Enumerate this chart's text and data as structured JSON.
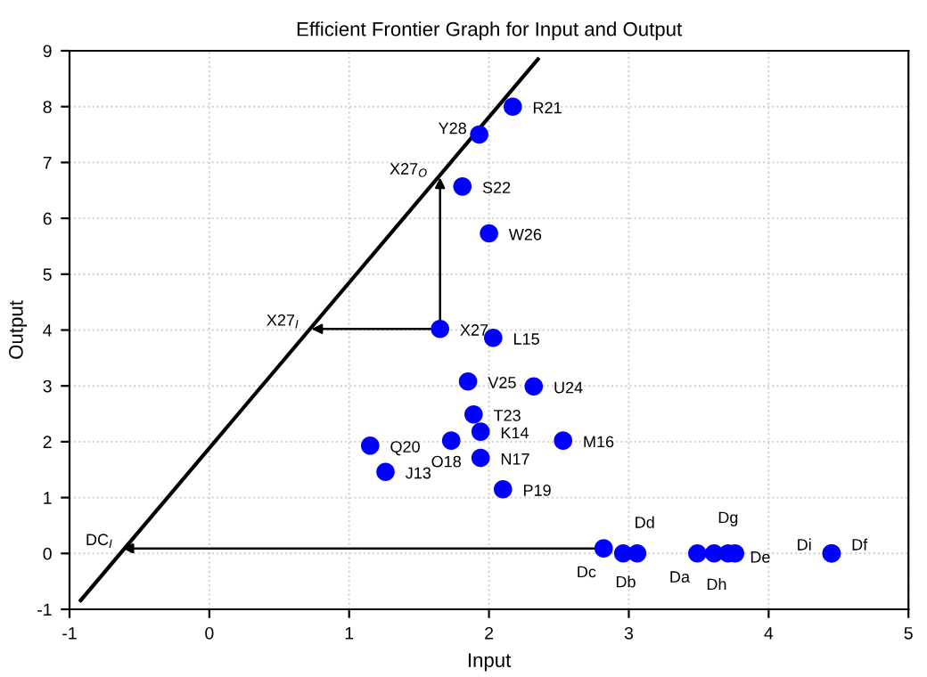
{
  "chart_data": {
    "type": "scatter",
    "title": "Efficient Frontier Graph for Input and Output",
    "xlabel": "Input",
    "ylabel": "Output",
    "xlim": [
      -1,
      5
    ],
    "xticks": [
      -1,
      0,
      1,
      2,
      3,
      4,
      5
    ],
    "ylim": [
      -1,
      9
    ],
    "yticks": [
      -1,
      0,
      1,
      2,
      3,
      4,
      5,
      6,
      7,
      8,
      9
    ],
    "grid": true,
    "series": [
      {
        "marker": "circle",
        "color": "#0000ff",
        "x": [
          2.17,
          1.93,
          1.81,
          2.0,
          1.65,
          2.03,
          1.85,
          2.32,
          1.89,
          1.94,
          1.73,
          2.53,
          1.15,
          1.94,
          1.26,
          2.1,
          2.82,
          2.96,
          3.06,
          3.49,
          3.61,
          3.71,
          3.76,
          4.45,
          4.45
        ],
        "values": [
          8.0,
          7.5,
          6.57,
          5.73,
          4.02,
          3.86,
          3.08,
          2.99,
          2.49,
          2.18,
          2.02,
          2.02,
          1.93,
          1.71,
          1.46,
          1.15,
          0.09,
          0.0,
          0.0,
          0.0,
          0.0,
          0.0,
          0.0,
          0.0,
          0.0
        ]
      },
      {
        "type": "line",
        "color": "#000000",
        "x": [
          -0.92,
          2.35
        ],
        "values": [
          -0.84,
          8.85
        ]
      }
    ],
    "annotations": [
      {
        "text": "R21",
        "x": 2.17,
        "y": 8.0
      },
      {
        "text": "Y28",
        "x": 1.93,
        "y": 7.5
      },
      {
        "text": "S22",
        "x": 1.81,
        "y": 6.57
      },
      {
        "text": "W26",
        "x": 2.0,
        "y": 5.73
      },
      {
        "text": "X27",
        "x": 1.65,
        "y": 4.02
      },
      {
        "text": "L15",
        "x": 2.03,
        "y": 3.86
      },
      {
        "text": "V25",
        "x": 1.85,
        "y": 3.08
      },
      {
        "text": "U24",
        "x": 2.32,
        "y": 2.99
      },
      {
        "text": "T23",
        "x": 1.89,
        "y": 2.49
      },
      {
        "text": "K14",
        "x": 1.94,
        "y": 2.18
      },
      {
        "text": "O18",
        "x": 1.73,
        "y": 2.02
      },
      {
        "text": "M16",
        "x": 2.53,
        "y": 2.02
      },
      {
        "text": "Q20",
        "x": 1.15,
        "y": 1.93
      },
      {
        "text": "N17",
        "x": 1.94,
        "y": 1.71
      },
      {
        "text": "J13",
        "x": 1.26,
        "y": 1.46
      },
      {
        "text": "P19",
        "x": 2.1,
        "y": 1.15
      },
      {
        "text": "Dc",
        "x": 2.82,
        "y": 0.09
      },
      {
        "text": "Db",
        "x": 2.96,
        "y": 0.0
      },
      {
        "text": "Dd",
        "x": 3.06,
        "y": 0.0
      },
      {
        "text": "Da",
        "x": 3.49,
        "y": 0.0
      },
      {
        "text": "Dh",
        "x": 3.61,
        "y": 0.0
      },
      {
        "text": "Dg",
        "x": 3.71,
        "y": 0.0
      },
      {
        "text": "De",
        "x": 3.76,
        "y": 0.0
      },
      {
        "text": "Di",
        "x": 4.45,
        "y": 0.0
      },
      {
        "text": "Df",
        "x": 4.45,
        "y": 0.0
      },
      {
        "text": "X27$_{I}$",
        "x": 0.73,
        "y": 4.02
      },
      {
        "text": "X27$_{O}$",
        "x": 1.65,
        "y": 6.73
      },
      {
        "text": "DC$_{I}$",
        "x": -0.62,
        "y": 0.09
      }
    ]
  }
}
